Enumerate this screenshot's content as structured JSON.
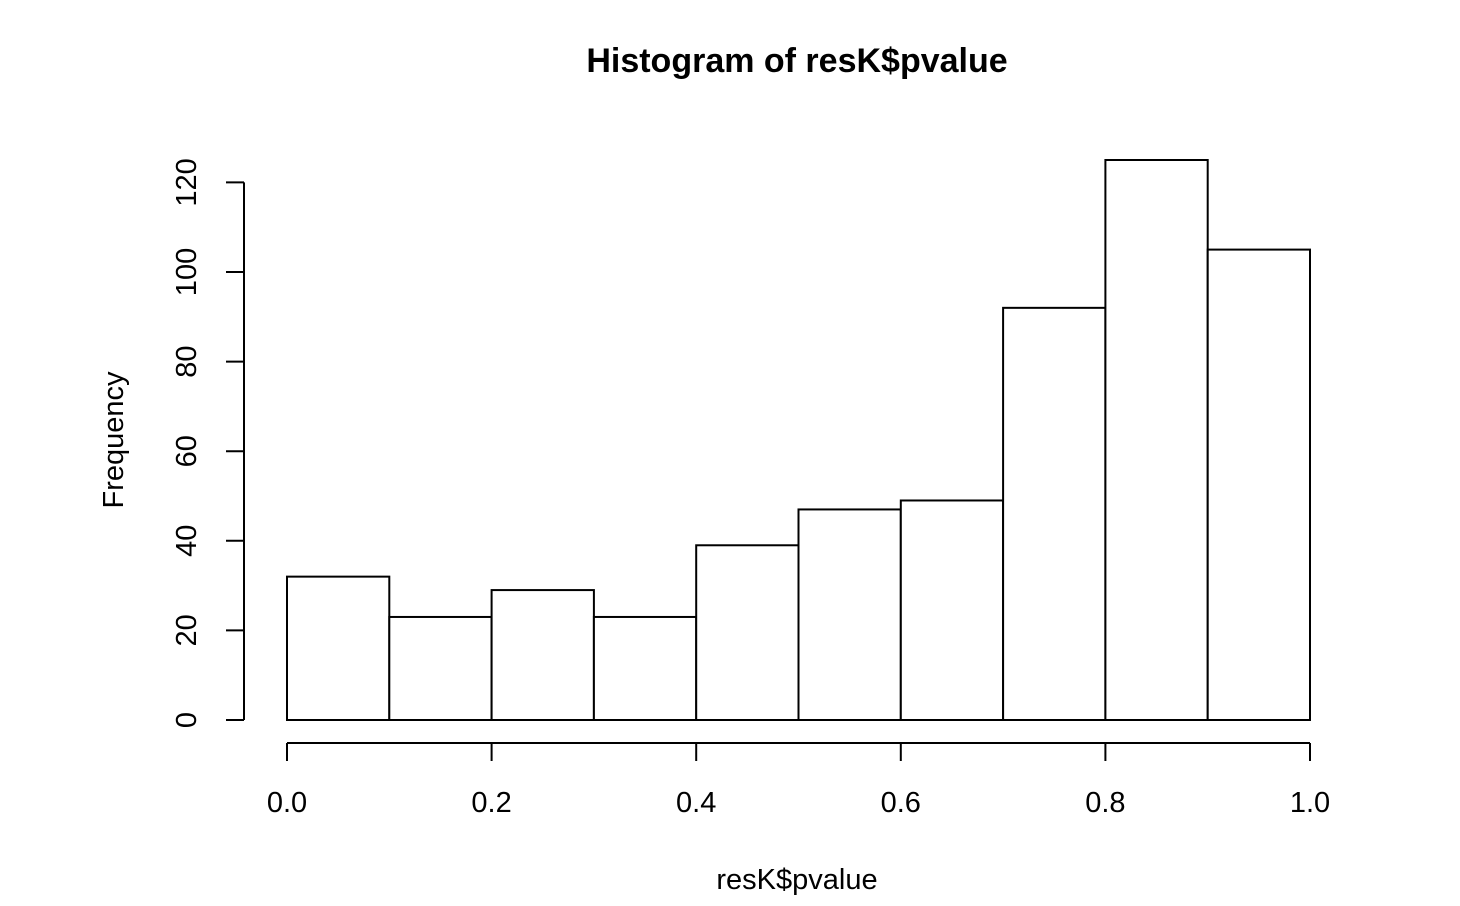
{
  "chart_data": {
    "type": "bar",
    "title": "Histogram of resK$pvalue",
    "xlabel": "resK$pvalue",
    "ylabel": "Frequency",
    "bins": [
      {
        "from": 0.0,
        "to": 0.1,
        "count": 32
      },
      {
        "from": 0.1,
        "to": 0.2,
        "count": 23
      },
      {
        "from": 0.2,
        "to": 0.3,
        "count": 29
      },
      {
        "from": 0.3,
        "to": 0.4,
        "count": 23
      },
      {
        "from": 0.4,
        "to": 0.5,
        "count": 39
      },
      {
        "from": 0.5,
        "to": 0.6,
        "count": 47
      },
      {
        "from": 0.6,
        "to": 0.7,
        "count": 49
      },
      {
        "from": 0.7,
        "to": 0.8,
        "count": 92
      },
      {
        "from": 0.8,
        "to": 0.9,
        "count": 125
      },
      {
        "from": 0.9,
        "to": 1.0,
        "count": 105
      }
    ],
    "xlim": [
      0,
      1
    ],
    "ylim": [
      0,
      125
    ],
    "x_ticks": [
      {
        "value": 0.0,
        "label": "0.0"
      },
      {
        "value": 0.2,
        "label": "0.2"
      },
      {
        "value": 0.4,
        "label": "0.4"
      },
      {
        "value": 0.6,
        "label": "0.6"
      },
      {
        "value": 0.8,
        "label": "0.8"
      },
      {
        "value": 1.0,
        "label": "1.0"
      }
    ],
    "y_ticks": [
      {
        "value": 0,
        "label": "0"
      },
      {
        "value": 20,
        "label": "20"
      },
      {
        "value": 40,
        "label": "40"
      },
      {
        "value": 60,
        "label": "60"
      },
      {
        "value": 80,
        "label": "80"
      },
      {
        "value": 100,
        "label": "100"
      },
      {
        "value": 120,
        "label": "120"
      }
    ],
    "grid": false,
    "bar_fill": "#ffffff",
    "bar_stroke": "#000000"
  }
}
